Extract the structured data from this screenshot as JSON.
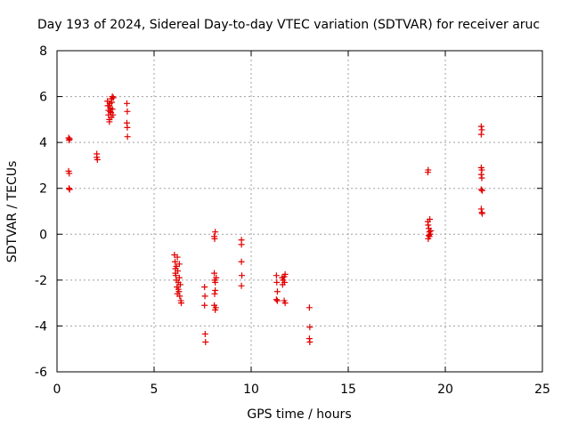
{
  "chart_data": {
    "type": "scatter",
    "title": "Day 193 of 2024, Sidereal Day-to-day VTEC variation (SDTVAR) for receiver aruc",
    "xlabel": "GPS time / hours",
    "ylabel": "SDTVAR / TECUs",
    "xlim": [
      0,
      25
    ],
    "ylim": [
      -6,
      8
    ],
    "xticks": [
      0,
      5,
      10,
      15,
      20,
      25
    ],
    "yticks": [
      -6,
      -4,
      -2,
      0,
      2,
      4,
      6,
      8
    ],
    "xtick_labels": [
      "0",
      "5",
      "10",
      "15",
      "20",
      "25"
    ],
    "ytick_labels": [
      "-6",
      "-4",
      "-2",
      "0",
      "2",
      "4",
      "6",
      "8"
    ],
    "grid": true,
    "marker": "plus",
    "color": "#e00000",
    "series": [
      {
        "name": "SDTVAR",
        "points": [
          [
            0.6,
            4.2
          ],
          [
            0.62,
            4.1
          ],
          [
            0.65,
            4.15
          ],
          [
            0.6,
            2.75
          ],
          [
            0.63,
            2.65
          ],
          [
            0.62,
            2.0
          ],
          [
            0.65,
            1.95
          ],
          [
            2.05,
            3.5
          ],
          [
            2.05,
            3.35
          ],
          [
            2.08,
            3.25
          ],
          [
            2.6,
            5.8
          ],
          [
            2.62,
            5.6
          ],
          [
            2.65,
            5.4
          ],
          [
            2.65,
            5.2
          ],
          [
            2.7,
            5.0
          ],
          [
            2.7,
            4.9
          ],
          [
            2.72,
            5.7
          ],
          [
            2.75,
            5.5
          ],
          [
            2.78,
            5.3
          ],
          [
            2.8,
            5.1
          ],
          [
            2.8,
            5.9
          ],
          [
            2.82,
            5.75
          ],
          [
            2.85,
            6.0
          ],
          [
            2.85,
            5.45
          ],
          [
            2.88,
            5.2
          ],
          [
            2.9,
            5.95
          ],
          [
            2.68,
            5.6
          ],
          [
            2.74,
            5.35
          ],
          [
            3.6,
            5.7
          ],
          [
            3.62,
            5.35
          ],
          [
            3.6,
            4.85
          ],
          [
            3.62,
            4.65
          ],
          [
            3.63,
            4.25
          ],
          [
            6.05,
            -0.9
          ],
          [
            6.08,
            -1.2
          ],
          [
            6.1,
            -1.5
          ],
          [
            6.12,
            -1.8
          ],
          [
            6.15,
            -2.0
          ],
          [
            6.18,
            -2.3
          ],
          [
            6.2,
            -1.0
          ],
          [
            6.22,
            -1.6
          ],
          [
            6.25,
            -2.1
          ],
          [
            6.28,
            -2.5
          ],
          [
            6.3,
            -1.3
          ],
          [
            6.32,
            -2.7
          ],
          [
            6.35,
            -2.2
          ],
          [
            6.38,
            -2.9
          ],
          [
            6.4,
            -3.0
          ],
          [
            6.3,
            -1.9
          ],
          [
            6.2,
            -2.6
          ],
          [
            6.15,
            -1.4
          ],
          [
            6.1,
            -1.7
          ],
          [
            6.25,
            -2.4
          ],
          [
            7.6,
            -2.3
          ],
          [
            7.62,
            -2.7
          ],
          [
            7.6,
            -3.1
          ],
          [
            7.63,
            -4.35
          ],
          [
            7.65,
            -4.7
          ],
          [
            8.1,
            -0.1
          ],
          [
            8.15,
            0.1
          ],
          [
            8.12,
            -0.2
          ],
          [
            8.1,
            -1.7
          ],
          [
            8.12,
            -2.0
          ],
          [
            8.15,
            -2.1
          ],
          [
            8.15,
            -2.45
          ],
          [
            8.12,
            -2.6
          ],
          [
            8.1,
            -3.1
          ],
          [
            8.15,
            -3.3
          ],
          [
            8.18,
            -3.2
          ],
          [
            8.2,
            -1.9
          ],
          [
            9.5,
            -0.25
          ],
          [
            9.5,
            -0.45
          ],
          [
            9.5,
            -1.2
          ],
          [
            9.52,
            -1.8
          ],
          [
            9.5,
            -2.25
          ],
          [
            11.3,
            -1.8
          ],
          [
            11.32,
            -2.1
          ],
          [
            11.35,
            -2.5
          ],
          [
            11.3,
            -2.85
          ],
          [
            11.35,
            -2.9
          ],
          [
            11.6,
            -1.9
          ],
          [
            11.62,
            -2.2
          ],
          [
            11.65,
            -2.0
          ],
          [
            11.7,
            -1.85
          ],
          [
            11.72,
            -2.1
          ],
          [
            11.75,
            -1.75
          ],
          [
            11.7,
            -2.9
          ],
          [
            11.75,
            -3.0
          ],
          [
            13.0,
            -3.2
          ],
          [
            13.02,
            -4.05
          ],
          [
            13.0,
            -4.55
          ],
          [
            13.02,
            -4.7
          ],
          [
            19.1,
            2.7
          ],
          [
            19.12,
            2.8
          ],
          [
            19.1,
            0.55
          ],
          [
            19.12,
            0.4
          ],
          [
            19.15,
            0.25
          ],
          [
            19.18,
            0.1
          ],
          [
            19.15,
            -0.05
          ],
          [
            19.12,
            -0.2
          ],
          [
            19.2,
            0.65
          ],
          [
            19.22,
            0.0
          ],
          [
            19.25,
            0.15
          ],
          [
            19.18,
            -0.1
          ],
          [
            21.85,
            4.7
          ],
          [
            21.88,
            4.55
          ],
          [
            21.85,
            4.35
          ],
          [
            21.85,
            2.9
          ],
          [
            21.88,
            2.8
          ],
          [
            21.85,
            2.6
          ],
          [
            21.88,
            2.45
          ],
          [
            21.85,
            1.95
          ],
          [
            21.9,
            1.9
          ],
          [
            21.85,
            1.1
          ],
          [
            21.88,
            0.95
          ],
          [
            21.9,
            0.9
          ]
        ]
      }
    ]
  }
}
